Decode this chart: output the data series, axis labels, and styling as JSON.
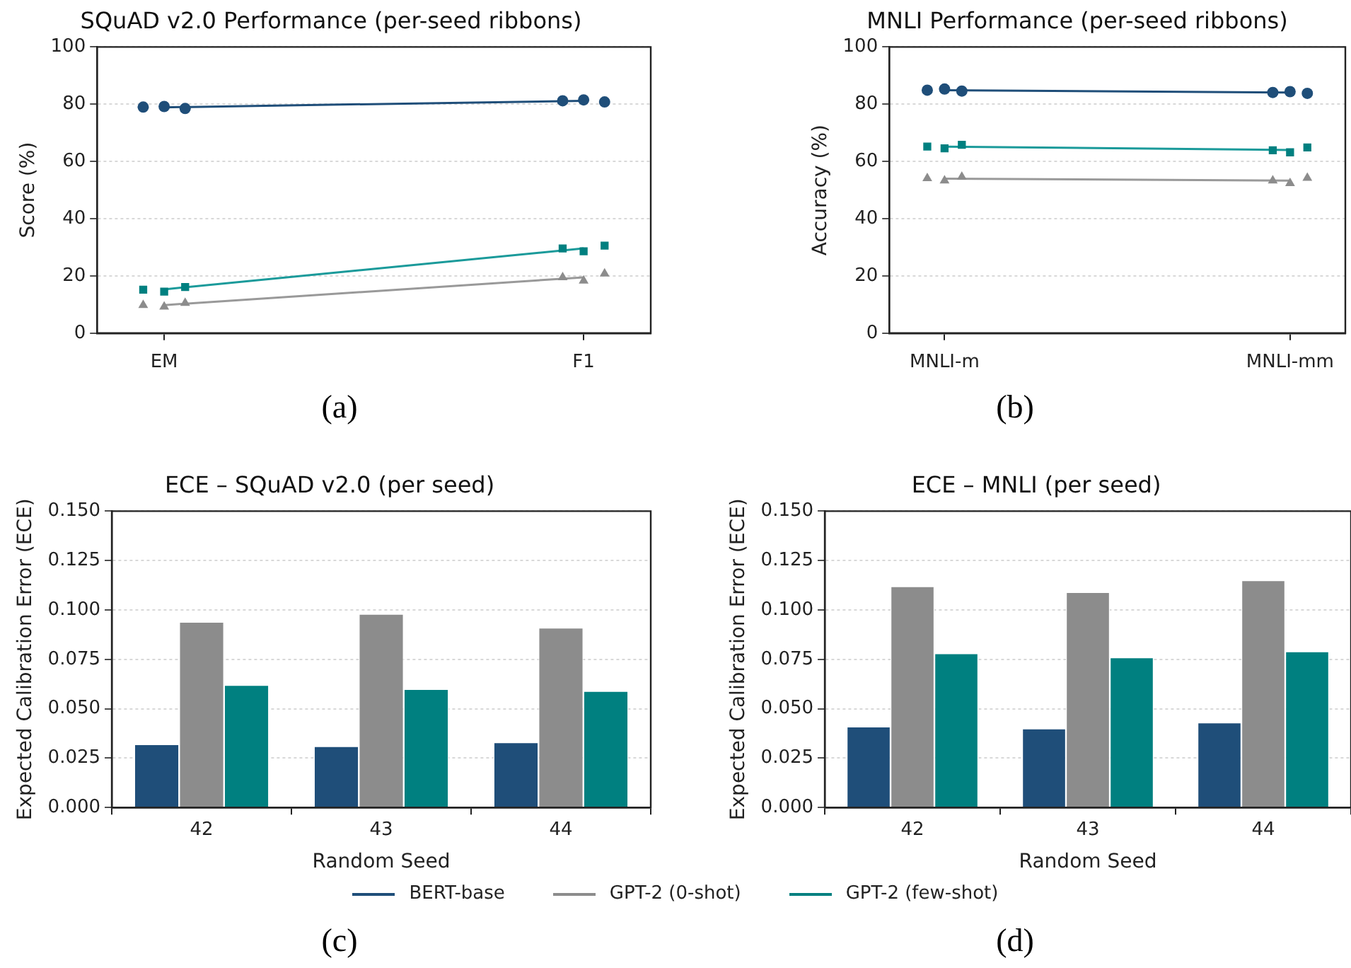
{
  "chart_data": [
    {
      "type": "line",
      "title": "SQuAD v2.0 Performance (per-seed ribbons)",
      "ylabel": "Score (%)",
      "categories": [
        "EM",
        "F1"
      ],
      "ylim": [
        0,
        100
      ],
      "yticks": [
        0,
        20,
        40,
        60,
        80,
        100
      ],
      "grid": "y",
      "annotations": [
        "(a)"
      ],
      "series": [
        {
          "type": "line",
          "color": "#1f4e79",
          "marker": "none",
          "values": [
            78.9,
            81.2
          ]
        },
        {
          "type": "scatter",
          "color": "#1f4e79",
          "marker": "circle",
          "x": [
            "EM",
            "EM",
            "EM",
            "F1",
            "F1",
            "F1"
          ],
          "values": [
            79.0,
            79.2,
            78.5,
            81.2,
            81.5,
            80.8
          ]
        },
        {
          "type": "line",
          "color": "#999999",
          "marker": "none",
          "values": [
            9.8,
            19.5
          ]
        },
        {
          "type": "scatter",
          "color": "#8c8c8c",
          "marker": "triangle",
          "x": [
            "EM",
            "EM",
            "EM",
            "F1",
            "F1",
            "F1"
          ],
          "values": [
            9.8,
            9.2,
            10.5,
            19.5,
            18.3,
            20.8
          ]
        },
        {
          "type": "line",
          "color": "#1a9a9a",
          "marker": "none",
          "values": [
            15.3,
            29.6
          ]
        },
        {
          "type": "scatter",
          "color": "#008080",
          "marker": "square",
          "x": [
            "EM",
            "EM",
            "EM",
            "F1",
            "F1",
            "F1"
          ],
          "values": [
            15.2,
            14.5,
            16.1,
            29.6,
            28.6,
            30.6
          ]
        }
      ]
    },
    {
      "type": "line",
      "title": "MNLI Performance (per-seed ribbons)",
      "ylabel": "Accuracy (%)",
      "categories": [
        "MNLI-m",
        "MNLI-mm"
      ],
      "ylim": [
        0,
        100
      ],
      "yticks": [
        0,
        20,
        40,
        60,
        80,
        100
      ],
      "grid": "y",
      "annotations": [
        "(b)"
      ],
      "series": [
        {
          "type": "line",
          "color": "#1f4e79",
          "marker": "none",
          "values": [
            84.9,
            84.1
          ]
        },
        {
          "type": "scatter",
          "color": "#1f4e79",
          "marker": "circle",
          "x": [
            "MNLI-m",
            "MNLI-m",
            "MNLI-m",
            "MNLI-mm",
            "MNLI-mm",
            "MNLI-mm"
          ],
          "values": [
            84.9,
            85.3,
            84.6,
            84.1,
            84.4,
            83.8
          ]
        },
        {
          "type": "line",
          "color": "#999999",
          "marker": "none",
          "values": [
            54.0,
            53.3
          ]
        },
        {
          "type": "scatter",
          "color": "#8c8c8c",
          "marker": "triangle",
          "x": [
            "MNLI-m",
            "MNLI-m",
            "MNLI-m",
            "MNLI-mm",
            "MNLI-mm",
            "MNLI-mm"
          ],
          "values": [
            54.1,
            53.3,
            54.6,
            53.3,
            52.4,
            54.2
          ]
        },
        {
          "type": "line",
          "color": "#1a9a9a",
          "marker": "none",
          "values": [
            65.2,
            64.0
          ]
        },
        {
          "type": "scatter",
          "color": "#008080",
          "marker": "square",
          "x": [
            "MNLI-m",
            "MNLI-m",
            "MNLI-m",
            "MNLI-mm",
            "MNLI-mm",
            "MNLI-mm"
          ],
          "values": [
            65.2,
            64.6,
            65.8,
            63.9,
            63.2,
            64.9
          ]
        }
      ]
    },
    {
      "type": "bar",
      "title": "ECE – SQuAD v2.0 (per seed)",
      "xlabel": "Random Seed",
      "ylabel": "Expected Calibration Error (ECE)",
      "categories": [
        "42",
        "43",
        "44"
      ],
      "ylim": [
        0,
        0.15
      ],
      "yticks": [
        {
          "value": 0,
          "label": "0.000"
        },
        {
          "value": 0.025,
          "label": "0.025"
        },
        {
          "value": 0.05,
          "label": "0.050"
        },
        {
          "value": 0.075,
          "label": "0.075"
        },
        {
          "value": 0.1,
          "label": "0.100"
        },
        {
          "value": 0.125,
          "label": "0.125"
        },
        {
          "value": 0.15,
          "label": "0.150"
        }
      ],
      "grid": "y",
      "legend": "bottom",
      "annotations": [
        "(c)"
      ],
      "series": [
        {
          "name": "BERT-base",
          "color": "#1f4e79",
          "values": [
            0.032,
            0.031,
            0.033
          ]
        },
        {
          "name": "GPT-2 (0-shot)",
          "color": "#8c8c8c",
          "values": [
            0.094,
            0.098,
            0.091
          ]
        },
        {
          "name": "GPT-2 (few-shot)",
          "color": "#008080",
          "values": [
            0.062,
            0.06,
            0.059
          ]
        }
      ]
    },
    {
      "type": "bar",
      "title": "ECE – MNLI (per seed)",
      "xlabel": "Random Seed",
      "ylabel": "Expected Calibration Error (ECE)",
      "categories": [
        "42",
        "43",
        "44"
      ],
      "ylim": [
        0,
        0.15
      ],
      "yticks": [
        {
          "value": 0,
          "label": "0.000"
        },
        {
          "value": 0.025,
          "label": "0.025"
        },
        {
          "value": 0.05,
          "label": "0.050"
        },
        {
          "value": 0.075,
          "label": "0.075"
        },
        {
          "value": 0.1,
          "label": "0.100"
        },
        {
          "value": 0.125,
          "label": "0.125"
        },
        {
          "value": 0.15,
          "label": "0.150"
        }
      ],
      "grid": "y",
      "annotations": [
        "(d)"
      ],
      "series": [
        {
          "color": "#1f4e79",
          "values": [
            0.041,
            0.04,
            0.043
          ]
        },
        {
          "color": "#8c8c8c",
          "values": [
            0.112,
            0.109,
            0.115
          ]
        },
        {
          "color": "#008080",
          "values": [
            0.078,
            0.076,
            0.079
          ]
        }
      ]
    }
  ]
}
